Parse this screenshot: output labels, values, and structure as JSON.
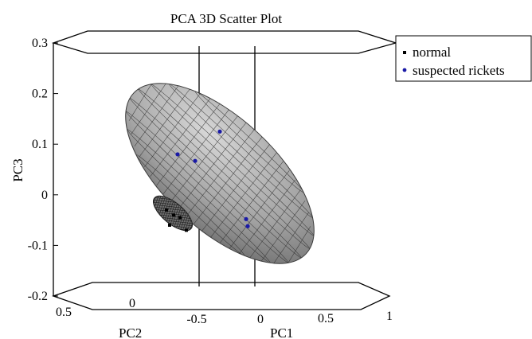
{
  "chart_data": {
    "type": "scatter",
    "projection": "3d",
    "title": "PCA 3D Scatter Plot",
    "axes": {
      "x": {
        "label": "PC1",
        "ticks": [
          "0",
          "0.5",
          "1"
        ]
      },
      "y": {
        "label": "PC2",
        "ticks": [
          "0.5",
          "0",
          "-0.5"
        ]
      },
      "z": {
        "label": "PC3",
        "ticks": [
          "0.3",
          "0.2",
          "0.1",
          "0",
          "-0.1",
          "-0.2"
        ],
        "range": [
          -0.2,
          0.3
        ]
      }
    },
    "legend": {
      "placement": "top-right",
      "entries": [
        "normal",
        "suspected rickets"
      ]
    },
    "series": [
      {
        "name": "normal",
        "marker": "square",
        "color": "#000000",
        "points": [
          {
            "pc3": -0.03
          },
          {
            "pc3": -0.04
          },
          {
            "pc3": -0.045
          },
          {
            "pc3": -0.06
          },
          {
            "pc3": -0.07
          }
        ]
      },
      {
        "name": "suspected rickets",
        "marker": "circle",
        "color": "#1a1aa6",
        "points": [
          {
            "pc3": 0.125
          },
          {
            "pc3": 0.08
          },
          {
            "pc3": 0.067
          },
          {
            "pc3": -0.048
          },
          {
            "pc3": -0.062
          }
        ]
      }
    ],
    "ellipsoid_color": "#9a9a9a",
    "grid": false
  }
}
